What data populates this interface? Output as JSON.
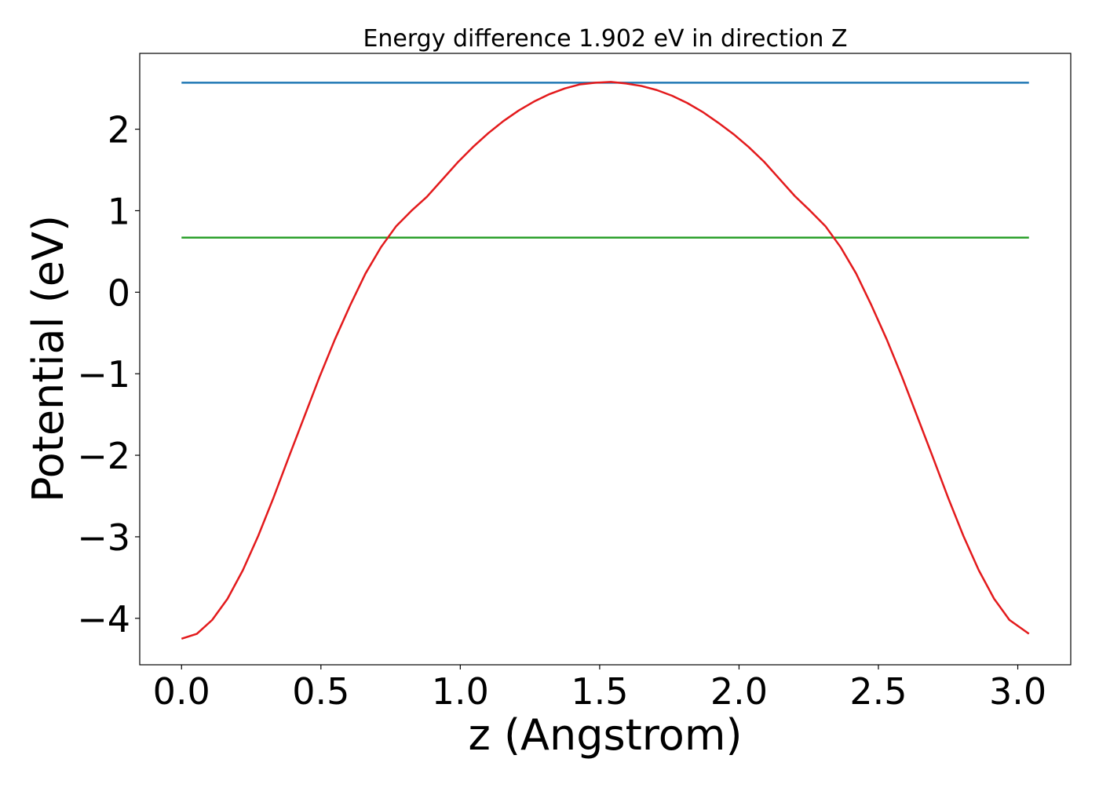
{
  "chart_data": {
    "type": "line",
    "title": "Energy difference 1.902 eV in direction Z",
    "xlabel": "z (Angstrom)",
    "ylabel": "Potential (eV)",
    "xlim": [
      -0.15,
      3.19
    ],
    "ylim": [
      -4.57,
      2.93
    ],
    "x_ticks": [
      0.0,
      0.5,
      1.0,
      1.5,
      2.0,
      2.5,
      3.0
    ],
    "x_tick_labels": [
      "0.0",
      "0.5",
      "1.0",
      "1.5",
      "2.0",
      "2.5",
      "3.0"
    ],
    "y_ticks": [
      -4,
      -3,
      -2,
      -1,
      0,
      1,
      2
    ],
    "y_tick_labels": [
      "−4",
      "−3",
      "−2",
      "−1",
      "0",
      "1",
      "2"
    ],
    "grid": false,
    "series": [
      {
        "color": "#1f77b4",
        "x": [
          0.0,
          3.04
        ],
        "y": [
          2.57,
          2.57
        ]
      },
      {
        "color": "#2ca02c",
        "x": [
          0.0,
          3.04
        ],
        "y": [
          0.67,
          0.67
        ]
      },
      {
        "color": "#e31a1c",
        "x": [
          0.0,
          0.055,
          0.11,
          0.165,
          0.22,
          0.275,
          0.33,
          0.385,
          0.44,
          0.495,
          0.55,
          0.605,
          0.66,
          0.715,
          0.77,
          0.825,
          0.88,
          0.935,
          0.99,
          1.045,
          1.1,
          1.155,
          1.21,
          1.265,
          1.32,
          1.375,
          1.43,
          1.485,
          1.54,
          1.595,
          1.65,
          1.705,
          1.76,
          1.815,
          1.87,
          1.925,
          1.98,
          2.035,
          2.09,
          2.145,
          2.2,
          2.255,
          2.31,
          2.365,
          2.42,
          2.475,
          2.53,
          2.585,
          2.64,
          2.695,
          2.75,
          2.805,
          2.86,
          2.915,
          2.97,
          3.04
        ],
        "y": [
          -4.25,
          -4.19,
          -4.02,
          -3.76,
          -3.41,
          -2.99,
          -2.52,
          -2.02,
          -1.53,
          -1.04,
          -0.58,
          -0.16,
          0.23,
          0.55,
          0.81,
          1.0,
          1.17,
          1.38,
          1.59,
          1.78,
          1.95,
          2.1,
          2.23,
          2.34,
          2.43,
          2.5,
          2.55,
          2.57,
          2.58,
          2.56,
          2.53,
          2.48,
          2.41,
          2.32,
          2.21,
          2.08,
          1.94,
          1.78,
          1.6,
          1.39,
          1.18,
          1.0,
          0.81,
          0.55,
          0.23,
          -0.16,
          -0.58,
          -1.04,
          -1.53,
          -2.02,
          -2.52,
          -2.99,
          -3.41,
          -3.76,
          -4.02,
          -4.19
        ]
      }
    ]
  }
}
